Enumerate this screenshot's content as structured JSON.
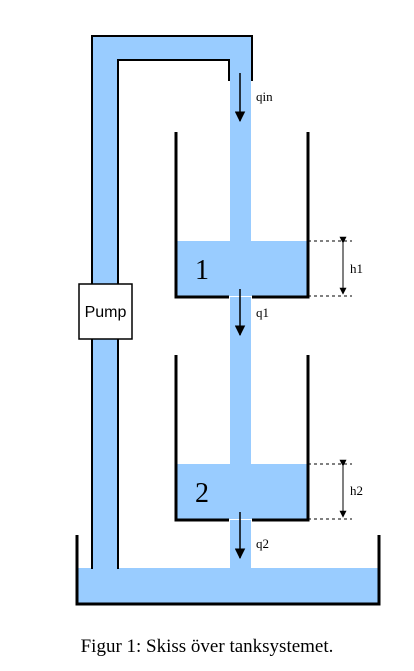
{
  "diagram": {
    "labels": {
      "q_in": "qin",
      "q1": "q1",
      "q2": "q2",
      "h1": "h1",
      "h2": "h2",
      "tank1": "1",
      "tank2": "2",
      "pump": "Pump"
    },
    "colors": {
      "water": "#99ccff",
      "stroke": "#000000",
      "background": "#ffffff"
    }
  },
  "caption": "Figur 1: Skiss över tanksystemet."
}
